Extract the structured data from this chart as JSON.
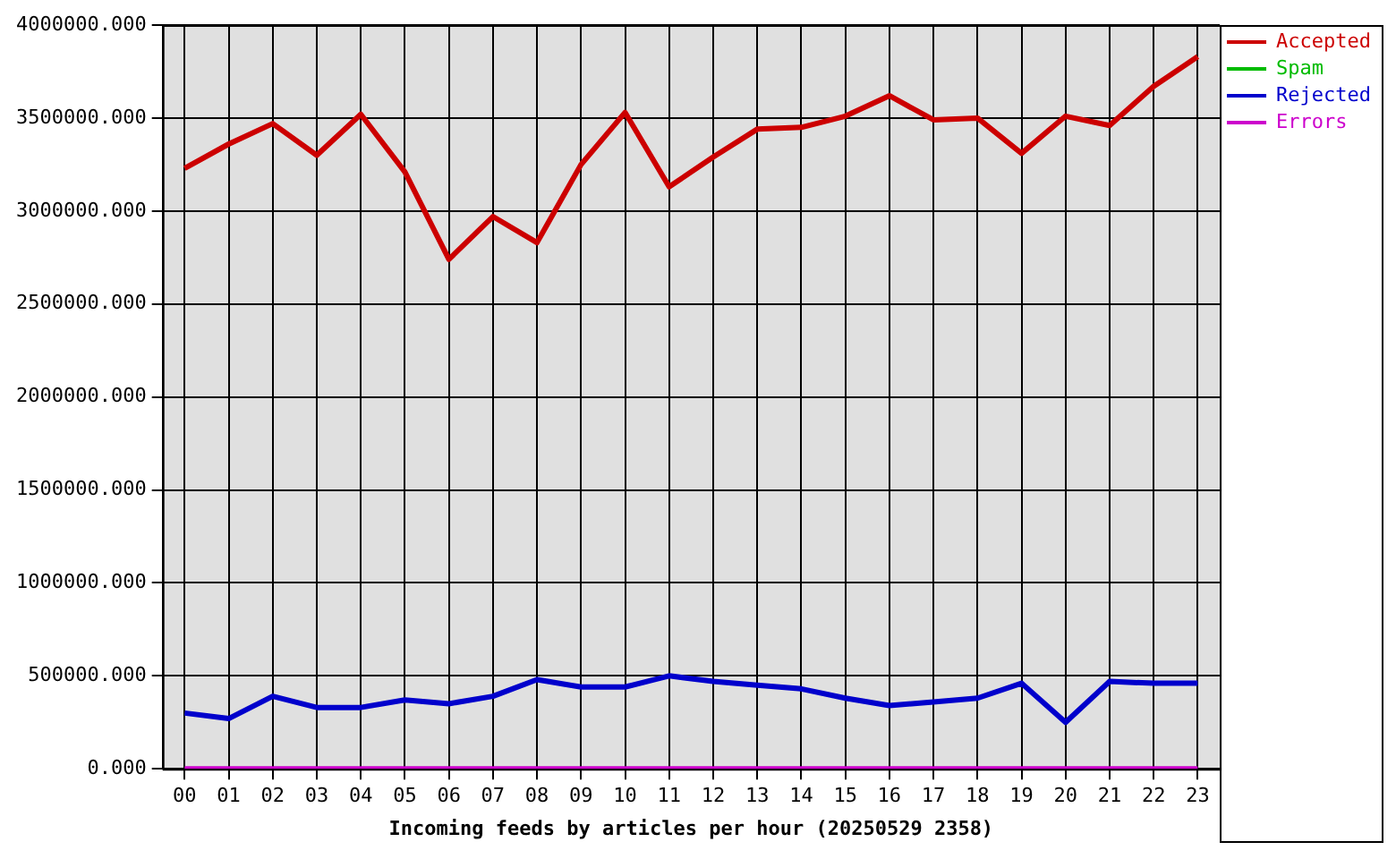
{
  "chart_data": {
    "type": "line",
    "xlabel": "Incoming feeds by articles per hour (20250529 2358)",
    "categories": [
      "00",
      "01",
      "02",
      "03",
      "04",
      "05",
      "06",
      "07",
      "08",
      "09",
      "10",
      "11",
      "12",
      "13",
      "14",
      "15",
      "16",
      "17",
      "18",
      "19",
      "20",
      "21",
      "22",
      "23"
    ],
    "series": [
      {
        "name": "Accepted",
        "color": "#cc0000",
        "values": [
          3230000,
          3360000,
          3470000,
          3300000,
          3520000,
          3210000,
          2740000,
          2970000,
          2830000,
          3250000,
          3530000,
          3130000,
          3290000,
          3440000,
          3450000,
          3510000,
          3620000,
          3490000,
          3500000,
          3310000,
          3510000,
          3460000,
          3670000,
          3830000
        ]
      },
      {
        "name": "Spam",
        "color": "#00bb00",
        "values": [
          null,
          null,
          null,
          null,
          null,
          null,
          null,
          null,
          null,
          null,
          null,
          null,
          null,
          null,
          null,
          null,
          null,
          null,
          null,
          null,
          null,
          null,
          null,
          null
        ]
      },
      {
        "name": "Rejected",
        "color": "#0000cc",
        "values": [
          300000,
          270000,
          390000,
          330000,
          330000,
          370000,
          350000,
          390000,
          480000,
          440000,
          440000,
          500000,
          470000,
          450000,
          430000,
          380000,
          340000,
          360000,
          380000,
          460000,
          250000,
          470000,
          460000,
          460000
        ]
      },
      {
        "name": "Errors",
        "color": "#cc00cc",
        "values": [
          0,
          0,
          0,
          0,
          0,
          0,
          0,
          0,
          0,
          0,
          0,
          0,
          0,
          0,
          0,
          0,
          0,
          0,
          0,
          0,
          0,
          0,
          0,
          0
        ]
      }
    ],
    "ylim": [
      0,
      4000000
    ],
    "yticks": [
      {
        "value": 0,
        "label": "0.000"
      },
      {
        "value": 500000,
        "label": "500000.000"
      },
      {
        "value": 1000000,
        "label": "1000000.000"
      },
      {
        "value": 1500000,
        "label": "1500000.000"
      },
      {
        "value": 2000000,
        "label": "2000000.000"
      },
      {
        "value": 2500000,
        "label": "2500000.000"
      },
      {
        "value": 3000000,
        "label": "3000000.000"
      },
      {
        "value": 3500000,
        "label": "3500000.000"
      },
      {
        "value": 4000000,
        "label": "4000000.000"
      }
    ],
    "grid": true,
    "legend": "right",
    "marker": "none",
    "line_style": "solid"
  }
}
